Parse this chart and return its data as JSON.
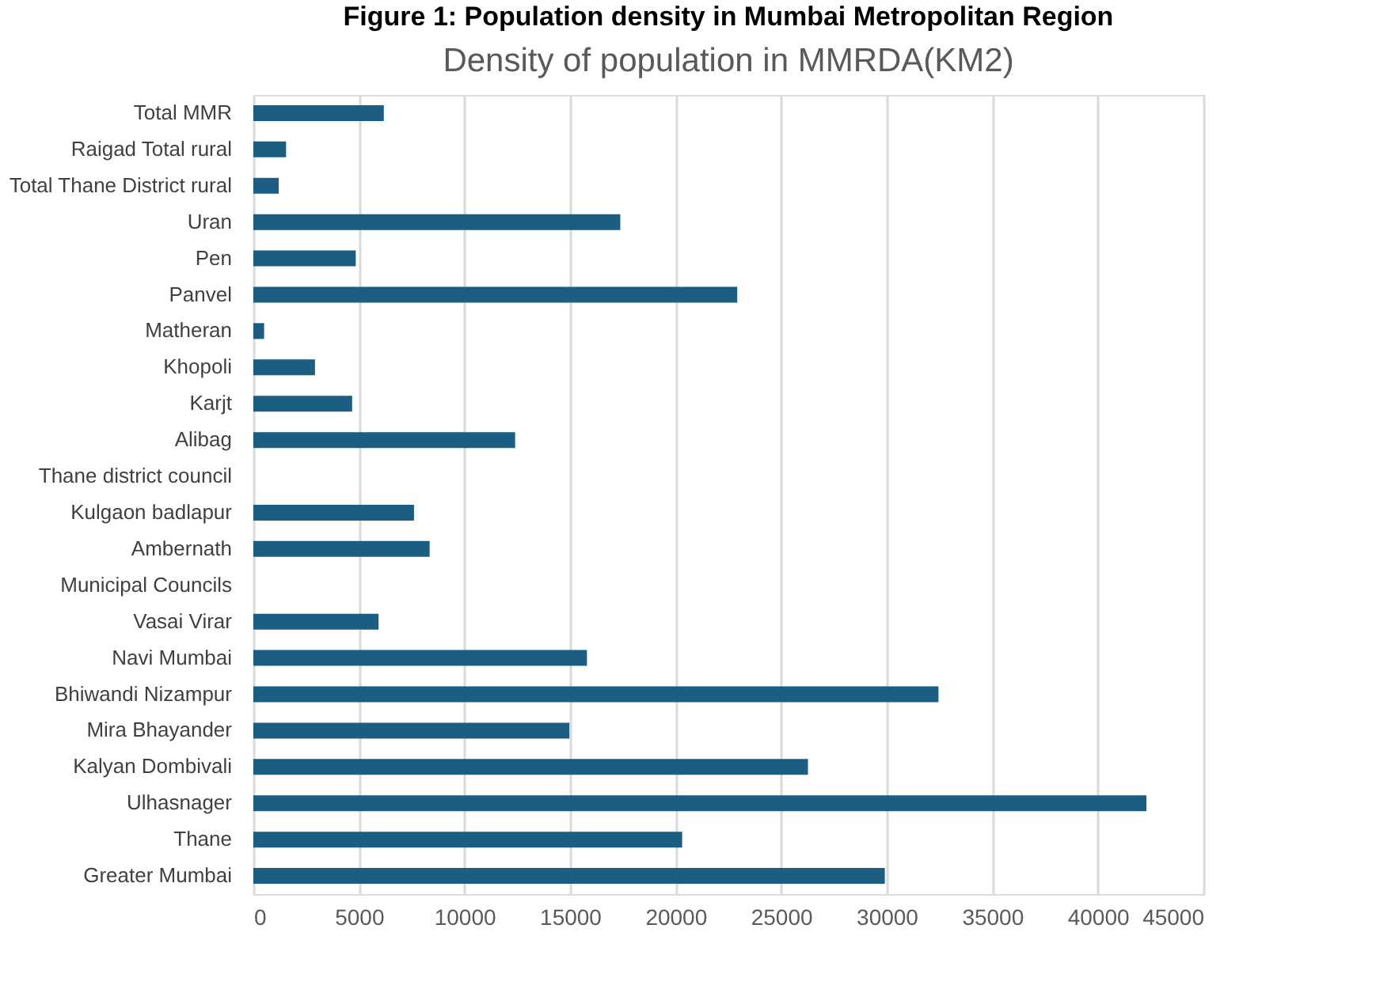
{
  "chart_data": {
    "type": "bar",
    "orientation": "horizontal",
    "title": "Figure 1: Population density in Mumbai Metropolitan Region",
    "subtitle": "Density of population in MMRDA(KM2)",
    "categories": [
      "Total MMR",
      "Raigad Total rural",
      "Total Thane District rural",
      "Uran",
      "Pen",
      "Panvel",
      "Matheran",
      "Khopoli",
      "Karjt",
      "Alibag",
      "Thane district council",
      "Kulgaon badlapur",
      "Ambernath",
      "Municipal Councils",
      "Vasai Virar",
      "Navi Mumbai",
      "Bhiwandi Nizampur",
      "Mira Bhayander",
      "Kalyan Dombivali",
      "Ulhasnager",
      "Thane",
      "Greater Mumbai"
    ],
    "values": [
      6180,
      1550,
      1200,
      17380,
      4850,
      22920,
      510,
      2920,
      4680,
      12400,
      null,
      7610,
      8350,
      null,
      5930,
      15800,
      32450,
      14970,
      26270,
      42300,
      20310,
      29910
    ],
    "color": "#1b5e82",
    "xlim": [
      0,
      45000
    ],
    "xticks": [
      0,
      5000,
      10000,
      15000,
      20000,
      25000,
      30000,
      35000,
      40000,
      45000
    ],
    "grid": "x"
  }
}
